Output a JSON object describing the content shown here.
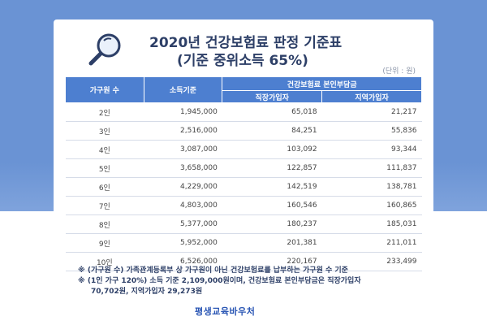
{
  "title": {
    "line1": "2020년 건강보험료 판정 기준표",
    "line2": "(기준 중위소득 65%)"
  },
  "icons": {
    "title_icon": "magnifier-icon"
  },
  "colors": {
    "background": "#6a93d4",
    "header": "#4d7fd0",
    "title_text": "#2d3f67",
    "logo": "#2a56b4"
  },
  "table": {
    "unit": "(단위 : 원)",
    "headers": {
      "household": "가구원 수",
      "income": "소득기준",
      "share_group": "건강보험료 본인부담금",
      "employee": "직장가입자",
      "regional": "지역가입자"
    },
    "rows": [
      {
        "household": "2인",
        "income": "1,945,000",
        "employee": "65,018",
        "regional": "21,217"
      },
      {
        "household": "3인",
        "income": "2,516,000",
        "employee": "84,251",
        "regional": "55,836"
      },
      {
        "household": "4인",
        "income": "3,087,000",
        "employee": "103,092",
        "regional": "93,344"
      },
      {
        "household": "5인",
        "income": "3,658,000",
        "employee": "122,857",
        "regional": "111,837"
      },
      {
        "household": "6인",
        "income": "4,229,000",
        "employee": "142,519",
        "regional": "138,781"
      },
      {
        "household": "7인",
        "income": "4,803,000",
        "employee": "160,546",
        "regional": "160,865"
      },
      {
        "household": "8인",
        "income": "5,377,000",
        "employee": "180,237",
        "regional": "185,031"
      },
      {
        "household": "9인",
        "income": "5,952,000",
        "employee": "201,381",
        "regional": "211,011"
      },
      {
        "household": "10인",
        "income": "6,526,000",
        "employee": "220,167",
        "regional": "233,499"
      }
    ]
  },
  "notes": {
    "note1": "※ (가구원 수) 가족관계등록부 상 가구원이 아닌 건강보험료를 납부하는 가구원 수 기준",
    "note2": "※ (1인 가구 120%) 소득 기준 2,109,000원이며, 건강보험료 본인부담금은 직장가입자",
    "note2_cont": "70,702원, 지역가입자 29,273원"
  },
  "logo": {
    "text": "평생교육바우처"
  }
}
